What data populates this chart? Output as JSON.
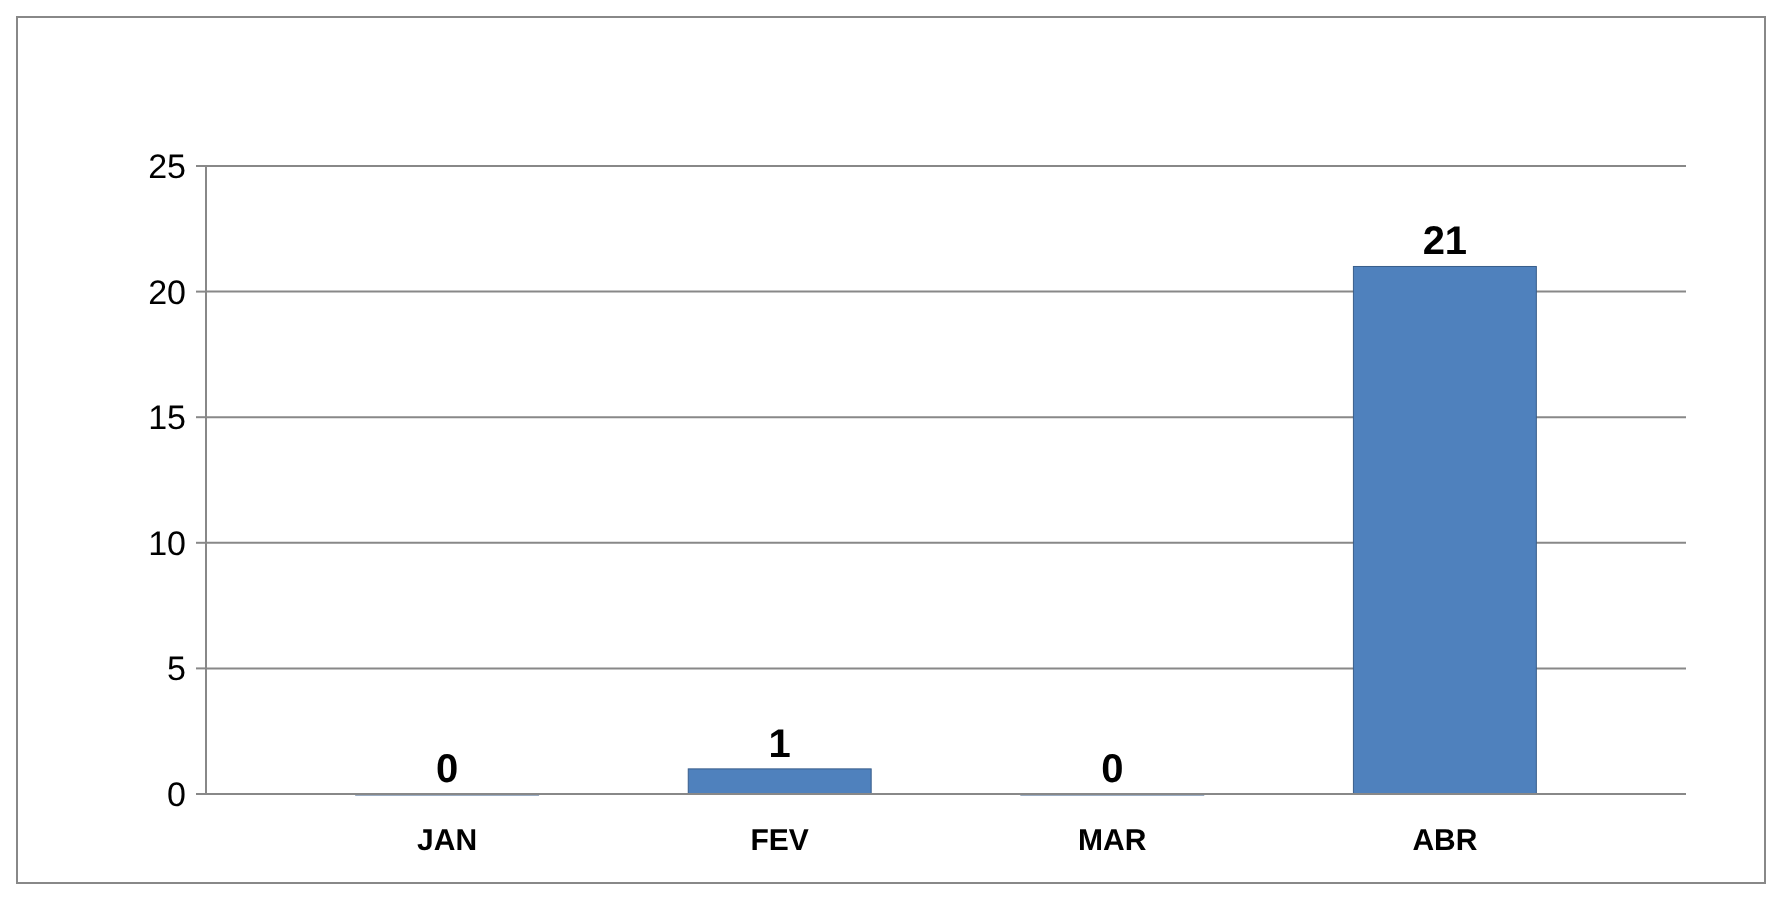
{
  "chart_data": {
    "type": "bar",
    "categories": [
      "JAN",
      "FEV",
      "MAR",
      "ABR"
    ],
    "values": [
      0,
      1,
      0,
      21
    ],
    "color": "#4f81bd",
    "ylim": [
      0,
      25
    ],
    "yticks": [
      0,
      5,
      10,
      15,
      20,
      25
    ],
    "grid": "y",
    "data_labels": true
  }
}
